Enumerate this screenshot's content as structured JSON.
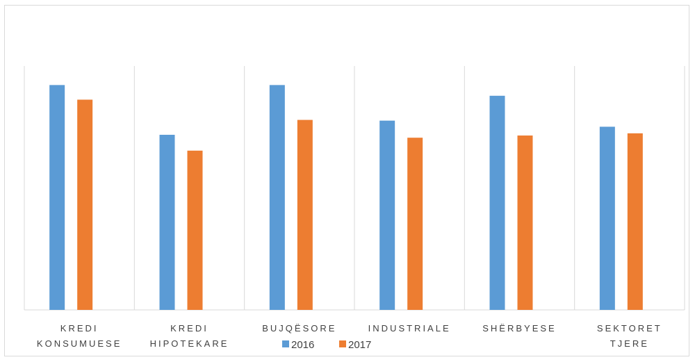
{
  "chart_data": {
    "type": "bar",
    "categories": [
      [
        "KREDI",
        "KONSUMUESE"
      ],
      [
        "KREDI",
        "HIPOTEKARE"
      ],
      [
        "BUJQËSORE"
      ],
      [
        "INDUSTRIALE"
      ],
      [
        "SHËRBYESE"
      ],
      [
        "SEKTORET",
        "TJERE"
      ]
    ],
    "series": [
      {
        "name": "2016",
        "color": "#5b9bd5",
        "values": [
          0.922,
          0.718,
          0.922,
          0.776,
          0.878,
          0.751
        ]
      },
      {
        "name": "2017",
        "color": "#ed7d31",
        "values": [
          0.862,
          0.653,
          0.779,
          0.706,
          0.715,
          0.724
        ]
      }
    ],
    "ylim": [
      0,
      1
    ],
    "grid": {
      "vertical_separators": true,
      "horizontal": false
    },
    "y_axis_labels": false,
    "legend": {
      "position": "bottom"
    }
  }
}
